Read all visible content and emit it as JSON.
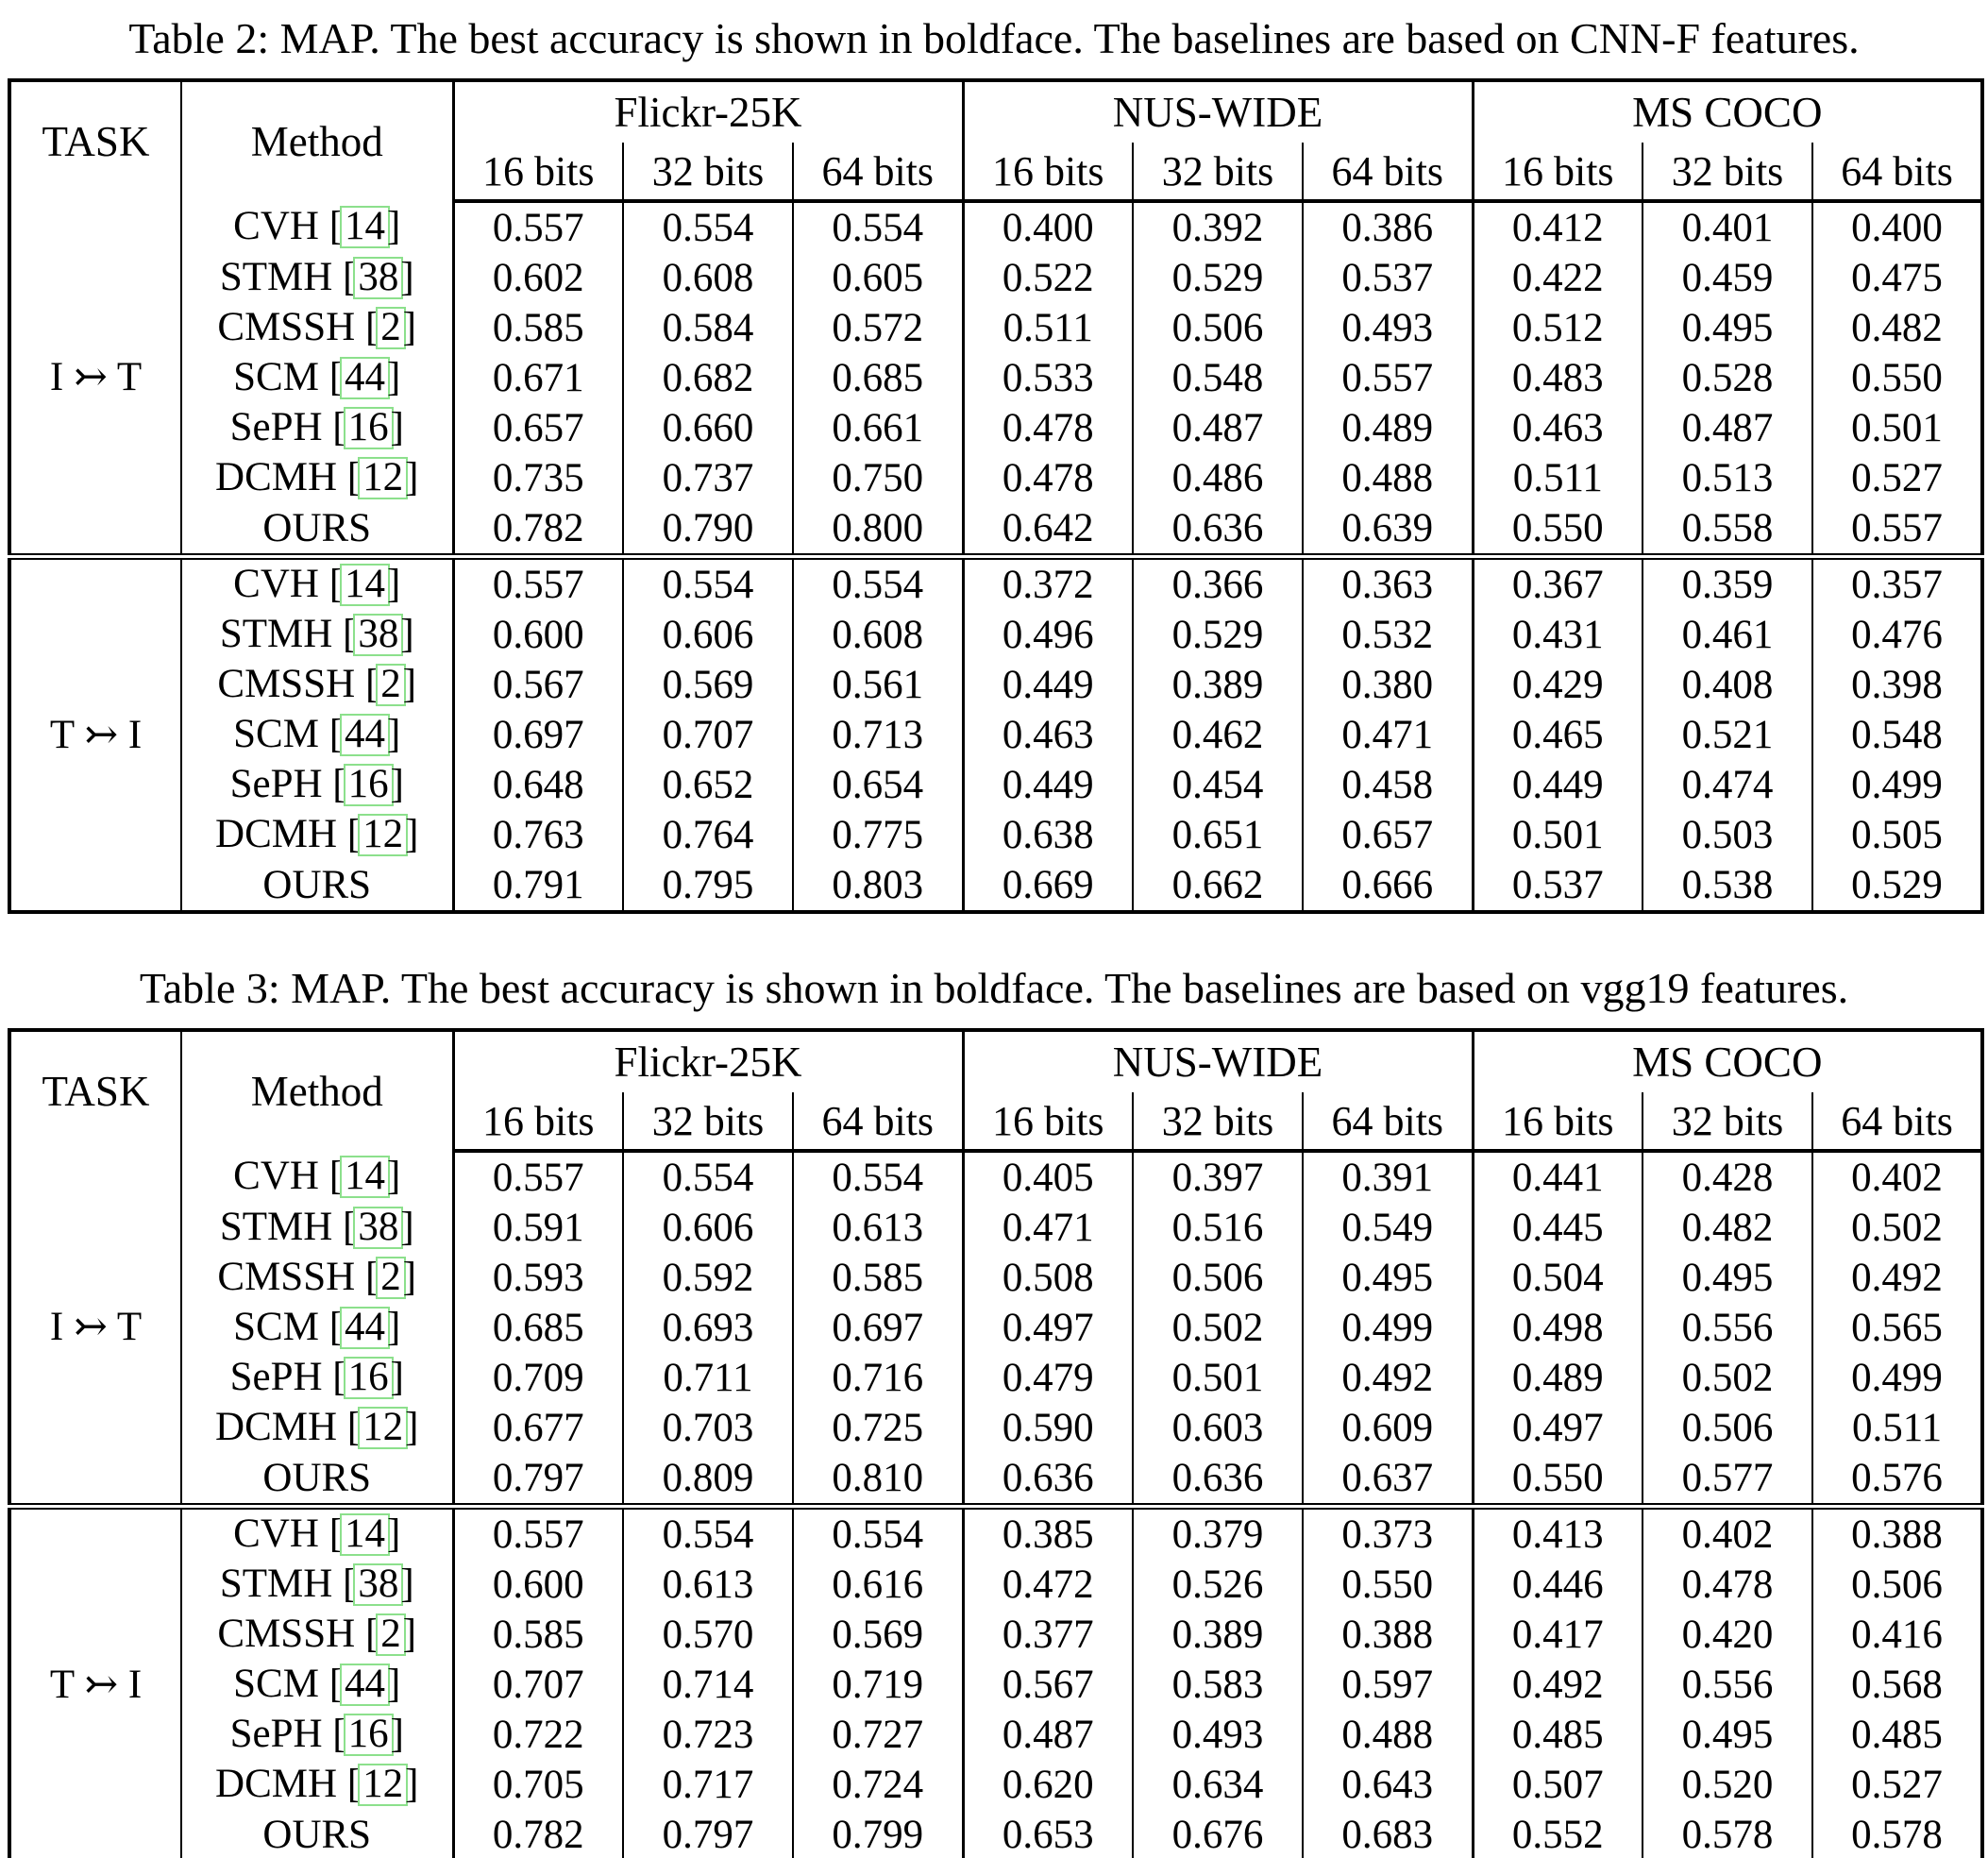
{
  "tables": [
    {
      "caption": "Table 2: MAP. The best accuracy is shown in boldface. The baselines are based on CNN-F features.",
      "task_header": "TASK",
      "method_header": "Method",
      "datasets": [
        "Flickr-25K",
        "NUS-WIDE",
        "MS COCO"
      ],
      "bit_labels": [
        "16 bits",
        "32 bits",
        "64 bits",
        "16 bits",
        "32 bits",
        "64 bits",
        "16 bits",
        "32 bits",
        "64 bits"
      ],
      "sections": [
        {
          "task": "I ↣ T",
          "rows": [
            {
              "method": "CVH",
              "cite": "14",
              "bold": false,
              "values": [
                "0.557",
                "0.554",
                "0.554",
                "0.400",
                "0.392",
                "0.386",
                "0.412",
                "0.401",
                "0.400"
              ]
            },
            {
              "method": "STMH",
              "cite": "38",
              "bold": false,
              "values": [
                "0.602",
                "0.608",
                "0.605",
                "0.522",
                "0.529",
                "0.537",
                "0.422",
                "0.459",
                "0.475"
              ]
            },
            {
              "method": "CMSSH",
              "cite": "2",
              "bold": false,
              "values": [
                "0.585",
                "0.584",
                "0.572",
                "0.511",
                "0.506",
                "0.493",
                "0.512",
                "0.495",
                "0.482"
              ]
            },
            {
              "method": "SCM",
              "cite": "44",
              "bold": false,
              "values": [
                "0.671",
                "0.682",
                "0.685",
                "0.533",
                "0.548",
                "0.557",
                "0.483",
                "0.528",
                "0.550"
              ]
            },
            {
              "method": "SePH",
              "cite": "16",
              "bold": false,
              "values": [
                "0.657",
                "0.660",
                "0.661",
                "0.478",
                "0.487",
                "0.489",
                "0.463",
                "0.487",
                "0.501"
              ]
            },
            {
              "method": "DCMH",
              "cite": "12",
              "bold": false,
              "values": [
                "0.735",
                "0.737",
                "0.750",
                "0.478",
                "0.486",
                "0.488",
                "0.511",
                "0.513",
                "0.527"
              ]
            },
            {
              "method": "OURS",
              "cite": null,
              "bold": true,
              "values": [
                "0.782",
                "0.790",
                "0.800",
                "0.642",
                "0.636",
                "0.639",
                "0.550",
                "0.558",
                "0.557"
              ]
            }
          ]
        },
        {
          "task": "T ↣ I",
          "rows": [
            {
              "method": "CVH",
              "cite": "14",
              "bold": false,
              "values": [
                "0.557",
                "0.554",
                "0.554",
                "0.372",
                "0.366",
                "0.363",
                "0.367",
                "0.359",
                "0.357"
              ]
            },
            {
              "method": "STMH",
              "cite": "38",
              "bold": false,
              "values": [
                "0.600",
                "0.606",
                "0.608",
                "0.496",
                "0.529",
                "0.532",
                "0.431",
                "0.461",
                "0.476"
              ]
            },
            {
              "method": "CMSSH",
              "cite": "2",
              "bold": false,
              "values": [
                "0.567",
                "0.569",
                "0.561",
                "0.449",
                "0.389",
                "0.380",
                "0.429",
                "0.408",
                "0.398"
              ]
            },
            {
              "method": "SCM",
              "cite": "44",
              "bold": false,
              "values": [
                "0.697",
                "0.707",
                "0.713",
                "0.463",
                "0.462",
                "0.471",
                "0.465",
                "0.521",
                "0.548"
              ]
            },
            {
              "method": "SePH",
              "cite": "16",
              "bold": false,
              "values": [
                "0.648",
                "0.652",
                "0.654",
                "0.449",
                "0.454",
                "0.458",
                "0.449",
                "0.474",
                "0.499"
              ]
            },
            {
              "method": "DCMH",
              "cite": "12",
              "bold": false,
              "values": [
                "0.763",
                "0.764",
                "0.775",
                "0.638",
                "0.651",
                "0.657",
                "0.501",
                "0.503",
                "0.505"
              ]
            },
            {
              "method": "OURS",
              "cite": null,
              "bold": true,
              "values": [
                "0.791",
                "0.795",
                "0.803",
                "0.669",
                "0.662",
                "0.666",
                "0.537",
                "0.538",
                "0.529"
              ]
            }
          ]
        }
      ]
    },
    {
      "caption": "Table 3: MAP. The best accuracy is shown in boldface. The baselines are based on vgg19 features.",
      "task_header": "TASK",
      "method_header": "Method",
      "datasets": [
        "Flickr-25K",
        "NUS-WIDE",
        "MS COCO"
      ],
      "bit_labels": [
        "16 bits",
        "32 bits",
        "64 bits",
        "16 bits",
        "32 bits",
        "64 bits",
        "16 bits",
        "32 bits",
        "64 bits"
      ],
      "sections": [
        {
          "task": "I ↣ T",
          "rows": [
            {
              "method": "CVH",
              "cite": "14",
              "bold": false,
              "values": [
                "0.557",
                "0.554",
                "0.554",
                "0.405",
                "0.397",
                "0.391",
                "0.441",
                "0.428",
                "0.402"
              ]
            },
            {
              "method": "STMH",
              "cite": "38",
              "bold": false,
              "values": [
                "0.591",
                "0.606",
                "0.613",
                "0.471",
                "0.516",
                "0.549",
                "0.445",
                "0.482",
                "0.502"
              ]
            },
            {
              "method": "CMSSH",
              "cite": "2",
              "bold": false,
              "values": [
                "0.593",
                "0.592",
                "0.585",
                "0.508",
                "0.506",
                "0.495",
                "0.504",
                "0.495",
                "0.492"
              ]
            },
            {
              "method": "SCM",
              "cite": "44",
              "bold": false,
              "values": [
                "0.685",
                "0.693",
                "0.697",
                "0.497",
                "0.502",
                "0.499",
                "0.498",
                "0.556",
                "0.565"
              ]
            },
            {
              "method": "SePH",
              "cite": "16",
              "bold": false,
              "values": [
                "0.709",
                "0.711",
                "0.716",
                "0.479",
                "0.501",
                "0.492",
                "0.489",
                "0.502",
                "0.499"
              ]
            },
            {
              "method": "DCMH",
              "cite": "12",
              "bold": false,
              "values": [
                "0.677",
                "0.703",
                "0.725",
                "0.590",
                "0.603",
                "0.609",
                "0.497",
                "0.506",
                "0.511"
              ]
            },
            {
              "method": "OURS",
              "cite": null,
              "bold": true,
              "values": [
                "0.797",
                "0.809",
                "0.810",
                "0.636",
                "0.636",
                "0.637",
                "0.550",
                "0.577",
                "0.576"
              ]
            }
          ]
        },
        {
          "task": "T ↣ I",
          "rows": [
            {
              "method": "CVH",
              "cite": "14",
              "bold": false,
              "values": [
                "0.557",
                "0.554",
                "0.554",
                "0.385",
                "0.379",
                "0.373",
                "0.413",
                "0.402",
                "0.388"
              ]
            },
            {
              "method": "STMH",
              "cite": "38",
              "bold": false,
              "values": [
                "0.600",
                "0.613",
                "0.616",
                "0.472",
                "0.526",
                "0.550",
                "0.446",
                "0.478",
                "0.506"
              ]
            },
            {
              "method": "CMSSH",
              "cite": "2",
              "bold": false,
              "values": [
                "0.585",
                "0.570",
                "0.569",
                "0.377",
                "0.389",
                "0.388",
                "0.417",
                "0.420",
                "0.416"
              ]
            },
            {
              "method": "SCM",
              "cite": "44",
              "bold": false,
              "values": [
                "0.707",
                "0.714",
                "0.719",
                "0.567",
                "0.583",
                "0.597",
                "0.492",
                "0.556",
                "0.568"
              ]
            },
            {
              "method": "SePH",
              "cite": "16",
              "bold": false,
              "values": [
                "0.722",
                "0.723",
                "0.727",
                "0.487",
                "0.493",
                "0.488",
                "0.485",
                "0.495",
                "0.485"
              ]
            },
            {
              "method": "DCMH",
              "cite": "12",
              "bold": false,
              "values": [
                "0.705",
                "0.717",
                "0.724",
                "0.620",
                "0.634",
                "0.643",
                "0.507",
                "0.520",
                "0.527"
              ]
            },
            {
              "method": "OURS",
              "cite": null,
              "bold": true,
              "values": [
                "0.782",
                "0.797",
                "0.799",
                "0.653",
                "0.676",
                "0.683",
                "0.552",
                "0.578",
                "0.578"
              ]
            }
          ]
        }
      ]
    }
  ]
}
